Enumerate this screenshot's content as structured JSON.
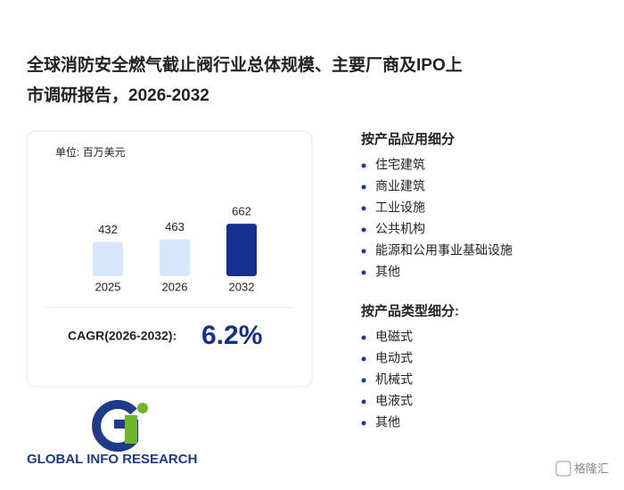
{
  "header": {
    "title_line1": "全球消防安全燃气截止阀行业总体规模、主要厂商及IPO上",
    "title_line2": "市调研报告，2026-2032"
  },
  "chart_data": {
    "type": "bar",
    "unit": "单位: 百万美元",
    "categories": [
      "2025",
      "2026",
      "2032"
    ],
    "values": [
      432,
      463,
      662
    ],
    "colors": [
      "#d6e7fb",
      "#d6e7fb",
      "#14318f"
    ]
  },
  "cagr": {
    "label": "CAGR(2026-2032):",
    "value": "6.2%"
  },
  "segments": [
    {
      "heading": "按产品应用细分",
      "items": [
        "住宅建筑",
        "商业建筑",
        "工业设施",
        "公共机构",
        "能源和公用事业基础设施",
        "其他"
      ]
    },
    {
      "heading": "按产品类型细分:",
      "items": [
        "电磁式",
        "电动式",
        "机械式",
        "电液式",
        "其他"
      ]
    }
  ],
  "logo": {
    "text": "GLOBAL INFO RESEARCH",
    "badge": "格隆汇"
  }
}
